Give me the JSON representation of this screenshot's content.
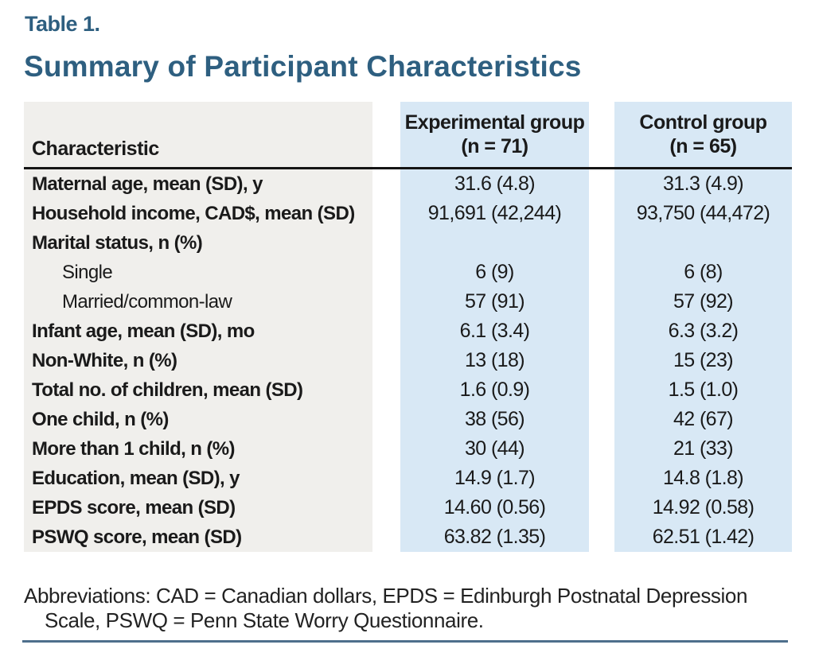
{
  "page": {
    "table_label": "Table 1.",
    "title": "Summary of Participant Characteristics"
  },
  "table": {
    "header": {
      "characteristic": "Characteristic",
      "exp_group_line1": "Experimental group",
      "exp_group_line2": "(n = 71)",
      "ctrl_group_line1": "Control group",
      "ctrl_group_line2": "(n = 65)"
    },
    "rows": [
      {
        "label": "Maternal age, mean (SD), y",
        "exp": "31.6 (4.8)",
        "ctrl": "31.3 (4.9)",
        "indent": false
      },
      {
        "label": "Household income, CAD$, mean (SD)",
        "exp": "91,691 (42,244)",
        "ctrl": "93,750 (44,472)",
        "indent": false
      },
      {
        "label": "Marital status, n (%)",
        "exp": "",
        "ctrl": "",
        "indent": false
      },
      {
        "label": "Single",
        "exp": "6 (9)",
        "ctrl": "6 (8)",
        "indent": true
      },
      {
        "label": "Married/common-law",
        "exp": "57 (91)",
        "ctrl": "57 (92)",
        "indent": true
      },
      {
        "label": "Infant age, mean (SD), mo",
        "exp": "6.1 (3.4)",
        "ctrl": "6.3 (3.2)",
        "indent": false
      },
      {
        "label": "Non-White, n (%)",
        "exp": "13 (18)",
        "ctrl": "15 (23)",
        "indent": false
      },
      {
        "label": "Total no. of children, mean (SD)",
        "exp": "1.6 (0.9)",
        "ctrl": "1.5 (1.0)",
        "indent": false
      },
      {
        "label": "One child, n (%)",
        "exp": "38 (56)",
        "ctrl": "42 (67)",
        "indent": false
      },
      {
        "label": "More than 1 child, n (%)",
        "exp": "30 (44)",
        "ctrl": "21 (33)",
        "indent": false
      },
      {
        "label": "Education, mean (SD), y",
        "exp": "14.9 (1.7)",
        "ctrl": "14.8 (1.8)",
        "indent": false
      },
      {
        "label": "EPDS score, mean (SD)",
        "exp": "14.60 (0.56)",
        "ctrl": "14.92 (0.58)",
        "indent": false
      },
      {
        "label": "PSWQ score, mean (SD)",
        "exp": "63.82 (1.35)",
        "ctrl": "62.51 (1.42)",
        "indent": false
      }
    ]
  },
  "footnote": {
    "text": "Abbreviations: CAD = Canadian dollars, EPDS = Edinburgh Postnatal Depression Scale, PSWQ = Penn State Worry Questionnaire."
  },
  "colors": {
    "title_blue": "#2e5f80",
    "column_gray": "#f0efec",
    "column_blue": "#d8e8f5",
    "header_rule": "#141414",
    "bottom_rule": "#4e6f8c"
  }
}
